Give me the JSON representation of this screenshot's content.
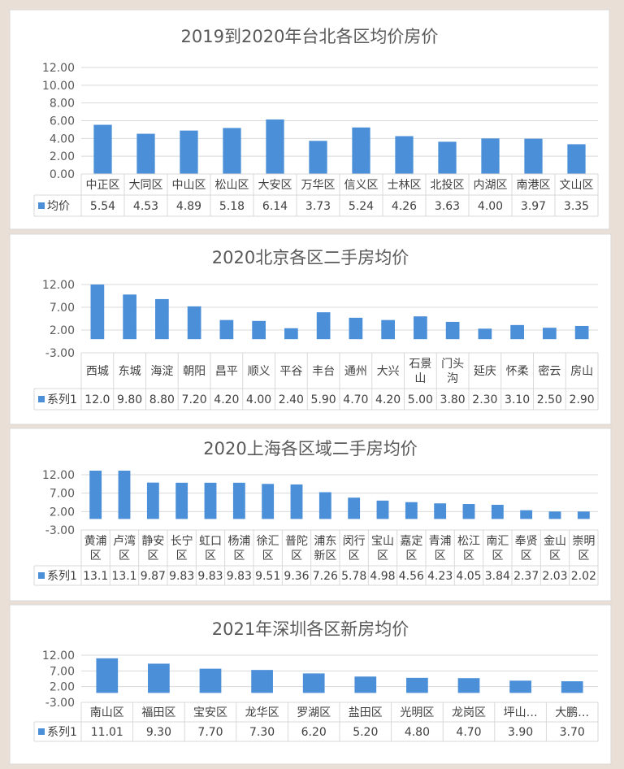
{
  "chart_data": [
    {
      "type": "bar",
      "title": "2019到2020年台北各区均价房价",
      "categories": [
        [
          "中正区"
        ],
        [
          "大同区"
        ],
        [
          "中山区"
        ],
        [
          "松山区"
        ],
        [
          "大安区"
        ],
        [
          "万华区"
        ],
        [
          "信义区"
        ],
        [
          "士林区"
        ],
        [
          "北投区"
        ],
        [
          "内湖区"
        ],
        [
          "南港区"
        ],
        [
          "文山区"
        ]
      ],
      "series": [
        {
          "name": "均价",
          "values": [
            5.54,
            4.53,
            4.89,
            5.18,
            6.14,
            3.73,
            5.24,
            4.26,
            3.63,
            4.0,
            3.97,
            3.35
          ],
          "labels": [
            "5.54",
            "4.53",
            "4.89",
            "5.18",
            "6.14",
            "3.73",
            "5.24",
            "4.26",
            "3.63",
            "4.00",
            "3.97",
            "3.35"
          ]
        }
      ],
      "yticks": [
        "0.00",
        "2.00",
        "4.00",
        "6.00",
        "8.00",
        "10.00",
        "12.00"
      ],
      "ylim": [
        0,
        12
      ],
      "color": "#4a8fd8"
    },
    {
      "type": "bar",
      "title": "2020北京各区二手房均价",
      "categories": [
        [
          "西城"
        ],
        [
          "东城"
        ],
        [
          "海淀"
        ],
        [
          "朝阳"
        ],
        [
          "昌平"
        ],
        [
          "顺义"
        ],
        [
          "平谷"
        ],
        [
          "丰台"
        ],
        [
          "通州"
        ],
        [
          "大兴"
        ],
        [
          "石景",
          "山"
        ],
        [
          "门头",
          "沟"
        ],
        [
          "延庆"
        ],
        [
          "怀柔"
        ],
        [
          "密云"
        ],
        [
          "房山"
        ]
      ],
      "series": [
        {
          "name": "系列1",
          "values": [
            12.0,
            9.8,
            8.8,
            7.2,
            4.2,
            4.0,
            2.4,
            5.9,
            4.7,
            4.2,
            5.0,
            3.8,
            2.3,
            3.1,
            2.5,
            2.9
          ],
          "labels": [
            "12.0",
            "9.80",
            "8.80",
            "7.20",
            "4.20",
            "4.00",
            "2.40",
            "5.90",
            "4.70",
            "4.20",
            "5.00",
            "3.80",
            "2.30",
            "3.10",
            "2.50",
            "2.90"
          ]
        }
      ],
      "yticks": [
        "-3.00",
        "2.00",
        "7.00",
        "12.00"
      ],
      "ylim": [
        -3,
        12
      ],
      "color": "#4a8fd8"
    },
    {
      "type": "bar",
      "title": "2020上海各区域二手房均价",
      "categories": [
        [
          "黄浦",
          "区"
        ],
        [
          "卢湾",
          "区"
        ],
        [
          "静安",
          "区"
        ],
        [
          "长宁",
          "区"
        ],
        [
          "虹口",
          "区"
        ],
        [
          "杨浦",
          "区"
        ],
        [
          "徐汇",
          "区"
        ],
        [
          "普陀",
          "区"
        ],
        [
          "浦东",
          "新区"
        ],
        [
          "闵行",
          "区"
        ],
        [
          "宝山",
          "区"
        ],
        [
          "嘉定",
          "区"
        ],
        [
          "青浦",
          "区"
        ],
        [
          "松江",
          "区"
        ],
        [
          "南汇",
          "区"
        ],
        [
          "奉贤",
          "区"
        ],
        [
          "金山",
          "区"
        ],
        [
          "崇明",
          "区"
        ]
      ],
      "series": [
        {
          "name": "系列1",
          "values": [
            13.1,
            13.1,
            9.87,
            9.83,
            9.83,
            9.83,
            9.51,
            9.36,
            7.26,
            5.78,
            4.98,
            4.56,
            4.23,
            4.05,
            3.84,
            2.37,
            2.03,
            2.02
          ],
          "labels": [
            "13.1",
            "13.1",
            "9.87",
            "9.83",
            "9.83",
            "9.83",
            "9.51",
            "9.36",
            "7.26",
            "5.78",
            "4.98",
            "4.56",
            "4.23",
            "4.05",
            "3.84",
            "2.37",
            "2.03",
            "2.02"
          ]
        }
      ],
      "yticks": [
        "-3.00",
        "2.00",
        "7.00",
        "12.00"
      ],
      "ylim": [
        -3,
        12
      ],
      "color": "#4a8fd8"
    },
    {
      "type": "bar",
      "title": "2021年深圳各区新房均价",
      "categories": [
        [
          "南山区"
        ],
        [
          "福田区"
        ],
        [
          "宝安区"
        ],
        [
          "龙华区"
        ],
        [
          "罗湖区"
        ],
        [
          "盐田区"
        ],
        [
          "光明区"
        ],
        [
          "龙岗区"
        ],
        [
          "坪山…"
        ],
        [
          "大鹏…"
        ]
      ],
      "series": [
        {
          "name": "系列1",
          "values": [
            11.01,
            9.3,
            7.7,
            7.3,
            6.2,
            5.2,
            4.8,
            4.7,
            3.9,
            3.7
          ],
          "labels": [
            "11.01",
            "9.30",
            "7.70",
            "7.30",
            "6.20",
            "5.20",
            "4.80",
            "4.70",
            "3.90",
            "3.70"
          ]
        }
      ],
      "yticks": [
        "-3.00",
        "2.00",
        "7.00",
        "12.00"
      ],
      "ylim": [
        -3,
        12
      ],
      "color": "#4a8fd8"
    }
  ]
}
